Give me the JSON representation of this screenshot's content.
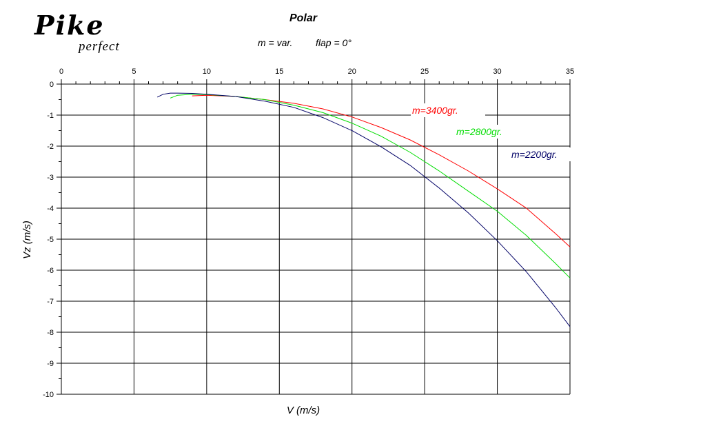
{
  "logo": {
    "main": "Pike",
    "sub": "perfect"
  },
  "header": {
    "title": "Polar",
    "subtitle_mass": "m = var.",
    "subtitle_flap": "flap = 0°"
  },
  "chart_data": {
    "type": "line",
    "title": "Polar",
    "xlabel": "V (m/s)",
    "ylabel": "Vz (m/s)",
    "xlim": [
      0,
      35
    ],
    "ylim": [
      -10,
      0
    ],
    "x_ticks": [
      "0",
      "5",
      "10",
      "15",
      "20",
      "25",
      "30",
      "35"
    ],
    "y_ticks": [
      "0",
      "-1",
      "-2",
      "-3",
      "-4",
      "-5",
      "-6",
      "-7",
      "-8",
      "-9",
      "-10"
    ],
    "grid": true,
    "x_axis_position": "top",
    "series": [
      {
        "name": "m=3400gr.",
        "color": "#ff0000",
        "x": [
          9,
          10,
          12,
          14,
          16,
          18,
          20,
          22,
          24,
          26,
          28,
          30,
          32,
          34,
          35
        ],
        "y": [
          -0.38,
          -0.36,
          -0.4,
          -0.5,
          -0.62,
          -0.8,
          -1.06,
          -1.4,
          -1.8,
          -2.28,
          -2.8,
          -3.38,
          -4.0,
          -4.82,
          -5.25
        ]
      },
      {
        "name": "m=2800gr.",
        "color": "#00dd00",
        "x": [
          7.5,
          8,
          9,
          10,
          12,
          14,
          16,
          18,
          20,
          22,
          24,
          26,
          28,
          30,
          32,
          34,
          35
        ],
        "y": [
          -0.45,
          -0.36,
          -0.33,
          -0.34,
          -0.4,
          -0.5,
          -0.68,
          -0.92,
          -1.26,
          -1.68,
          -2.2,
          -2.8,
          -3.45,
          -4.1,
          -4.88,
          -5.78,
          -6.25
        ]
      },
      {
        "name": "m=2200gr.",
        "color": "#000066",
        "x": [
          6.6,
          7,
          7.5,
          8,
          9,
          10,
          12,
          14,
          16,
          18,
          20,
          22,
          24,
          26,
          28,
          30,
          32,
          34,
          35
        ],
        "y": [
          -0.42,
          -0.33,
          -0.29,
          -0.29,
          -0.3,
          -0.33,
          -0.4,
          -0.55,
          -0.75,
          -1.08,
          -1.5,
          -2.02,
          -2.62,
          -3.35,
          -4.15,
          -5.05,
          -6.05,
          -7.2,
          -7.82
        ]
      }
    ]
  }
}
